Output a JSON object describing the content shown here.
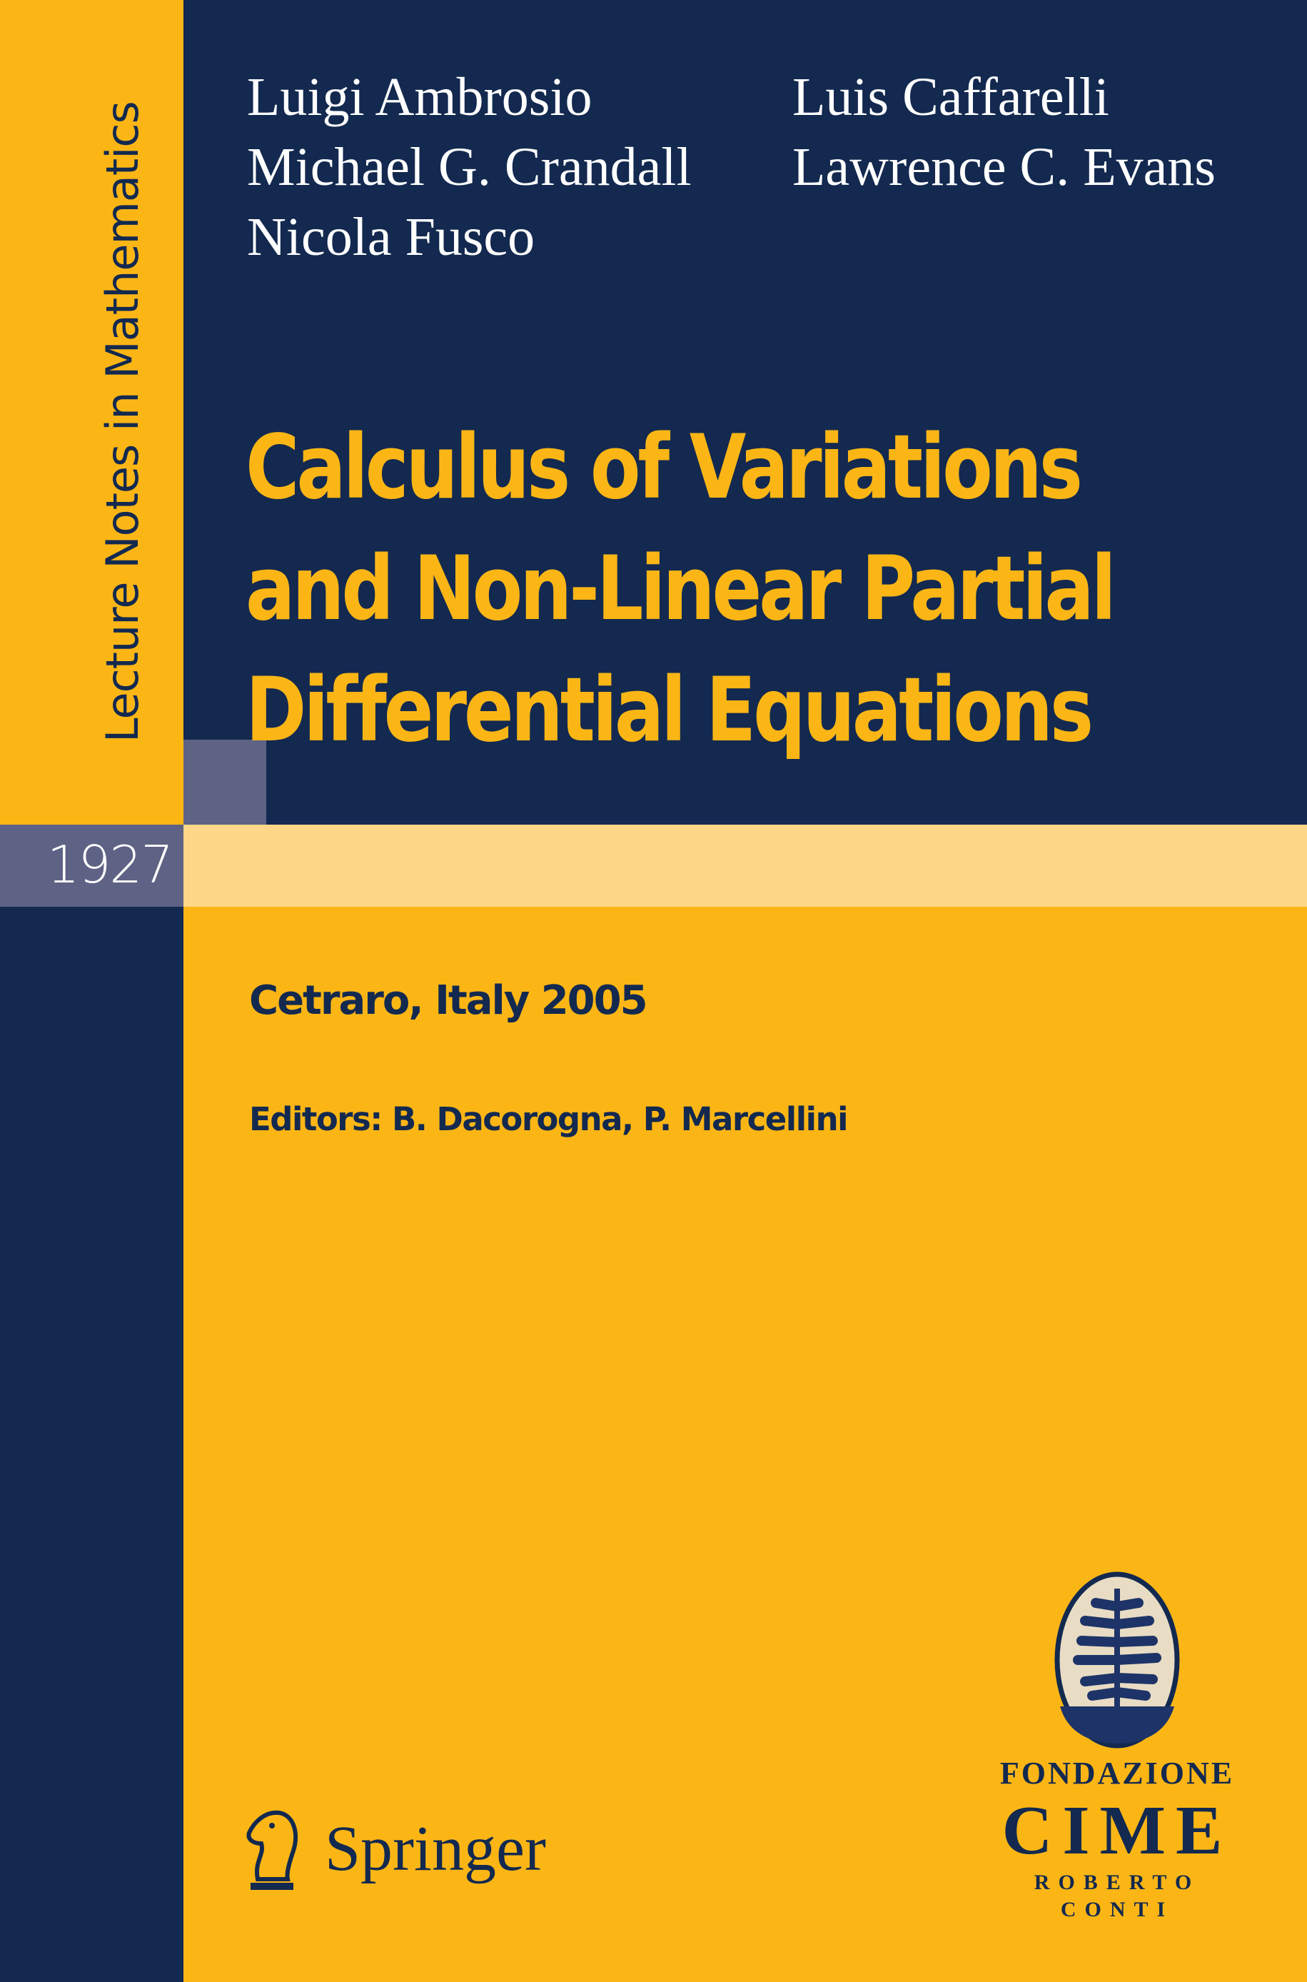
{
  "series": {
    "name": "Lecture Notes in Mathematics",
    "volume": "1927"
  },
  "authors": [
    "Luigi Ambrosio",
    "Luis Caffarelli",
    "Michael G. Crandall",
    "Lawrence C. Evans",
    "Nicola Fusco"
  ],
  "title_lines": [
    "Calculus of Variations",
    "and Non-Linear Partial",
    "Differential Equations"
  ],
  "place": "Cetraro, Italy 2005",
  "editors": "Editors: B. Dacorogna, P. Marcellini",
  "publisher": {
    "name": "Springer",
    "icon": "springer-knight-icon"
  },
  "foundation_logo": {
    "line1": "Fondazione",
    "line2": "CIME",
    "line3": "Roberto Conti",
    "icon": "tree-oval-icon"
  },
  "colors": {
    "navy": "#13294f",
    "yellow": "#fbb616",
    "gray": "#5e6284",
    "band": "#fed888"
  }
}
